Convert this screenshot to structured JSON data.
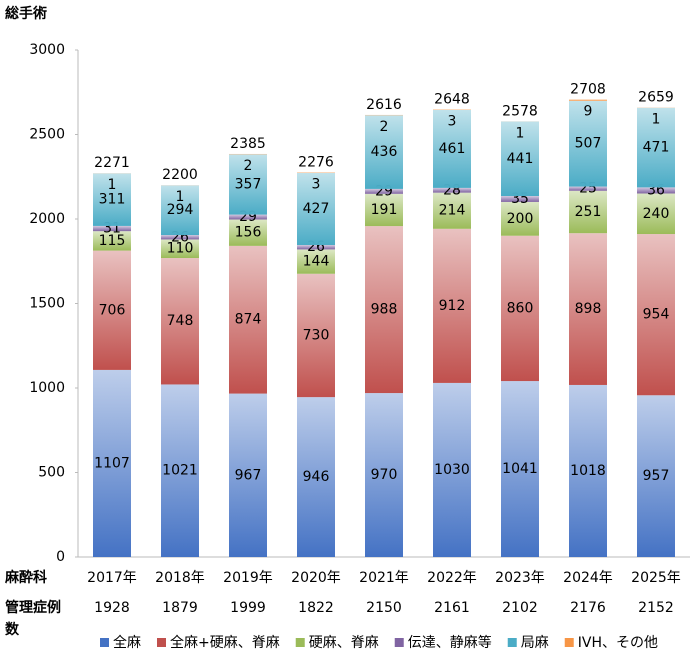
{
  "chart_data": {
    "type": "stacked-bar",
    "title": "総手術",
    "categories": [
      "2017年",
      "2018年",
      "2019年",
      "2020年",
      "2021年",
      "2022年",
      "2023年",
      "2024年",
      "2025年"
    ],
    "series": [
      {
        "name": "全麻",
        "color": "#4472c4",
        "values": [
          1107,
          1021,
          967,
          946,
          970,
          1030,
          1041,
          1018,
          957
        ]
      },
      {
        "name": "全麻+硬麻、脊麻",
        "color": "#c0504d",
        "values": [
          706,
          748,
          874,
          730,
          988,
          912,
          860,
          898,
          954
        ]
      },
      {
        "name": "硬麻、脊麻",
        "color": "#9bbb59",
        "values": [
          115,
          110,
          156,
          144,
          191,
          214,
          200,
          251,
          240
        ]
      },
      {
        "name": "伝達、静麻等",
        "color": "#8064a2",
        "values": [
          31,
          26,
          29,
          26,
          29,
          28,
          35,
          25,
          36
        ]
      },
      {
        "name": "局麻",
        "color": "#4bacc6",
        "values": [
          311,
          294,
          357,
          427,
          436,
          461,
          441,
          507,
          471
        ]
      },
      {
        "name": "IVH、その他",
        "color": "#f79646",
        "values": [
          1,
          1,
          2,
          3,
          2,
          3,
          1,
          9,
          1
        ]
      }
    ],
    "totals": [
      2271,
      2200,
      2385,
      2276,
      2616,
      2648,
      2578,
      2708,
      2659
    ],
    "case_label": [
      "麻酔科",
      "管理症例",
      "数"
    ],
    "case_counts": [
      1928,
      1879,
      1999,
      1822,
      2150,
      2161,
      2102,
      2176,
      2152
    ],
    "ylim": [
      0,
      3000
    ],
    "yticks": [
      0,
      500,
      1000,
      1500,
      2000,
      2500,
      3000
    ],
    "grid": false
  }
}
